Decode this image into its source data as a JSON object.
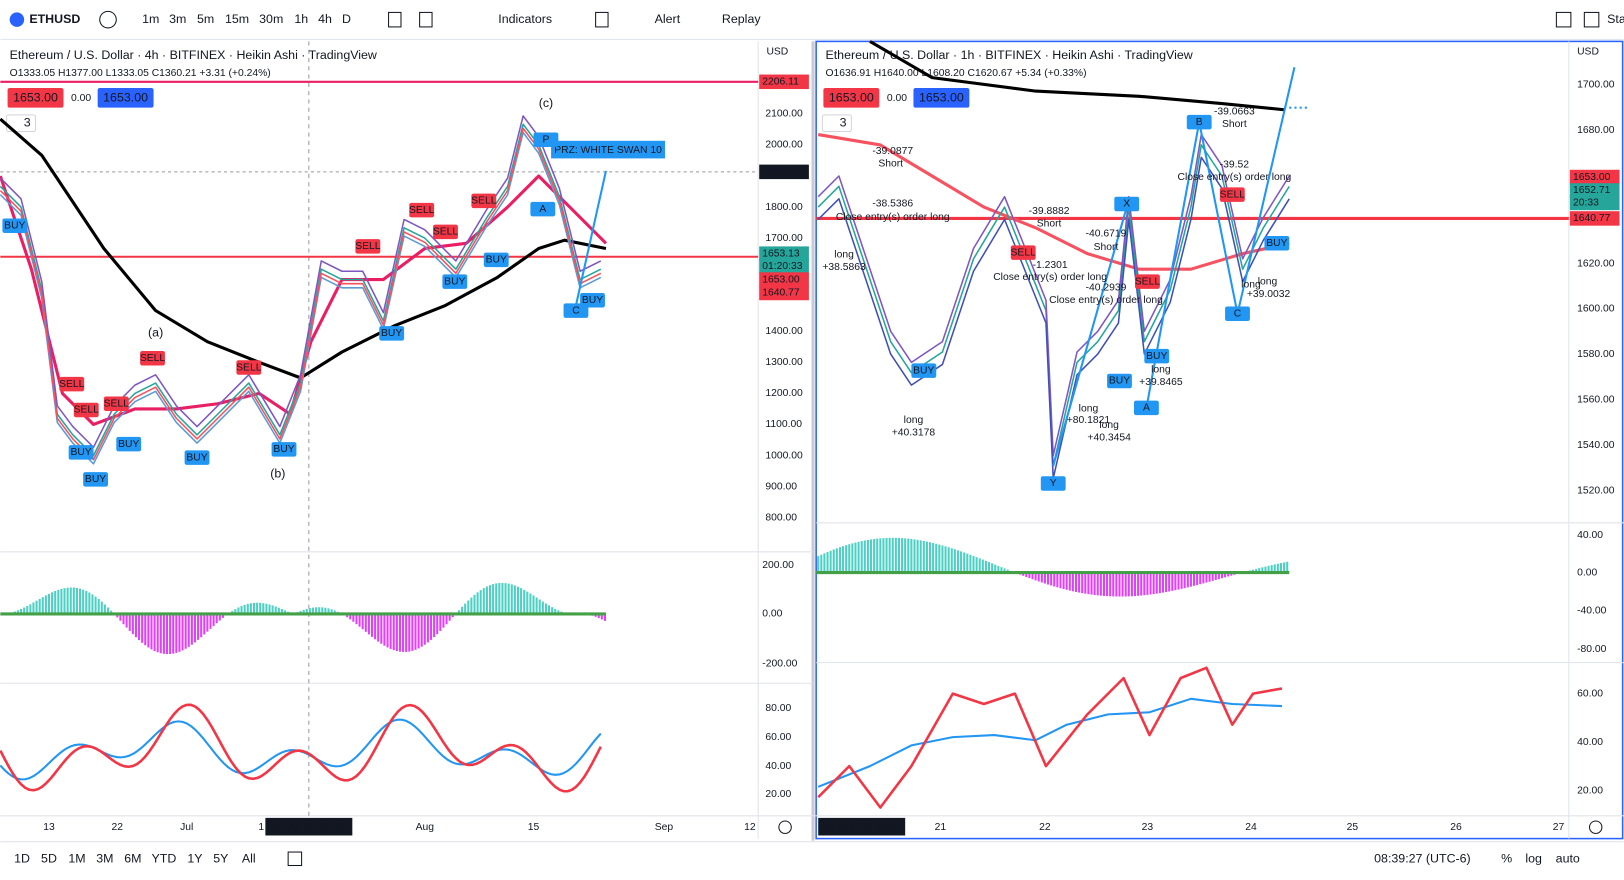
{
  "toolbar": {
    "symbol": "ETHUSD",
    "intervals": [
      "1m",
      "3m",
      "5m",
      "15m",
      "30m",
      "1h",
      "4h",
      "D"
    ],
    "indicators": "Indicators",
    "alert": "Alert",
    "replay": "Replay",
    "cut_off": "Sta"
  },
  "left_chart": {
    "title": "Ethereum / U.S. Dollar · 4h · BITFINEX · Heikin Ashi · TradingView",
    "ohlc": "O1333.05 H1377.00 L1333.05 C1360.21 +3.31 (+0.24%)",
    "price_boxes": [
      "1653.00",
      "0.00",
      "1653.00"
    ],
    "indicator_count": "3",
    "currency": "USD",
    "price_labels": [
      "2100.00",
      "2000.00",
      "1800.00",
      "1700.00",
      "1400.00",
      "1300.00",
      "1200.00",
      "1100.00",
      "1000.00",
      "900.00",
      "800.00"
    ],
    "price_tags": [
      "2206.11",
      "1915.99",
      "1653.13",
      "01:20:33",
      "1653.00",
      "1640.77"
    ],
    "osc_labels": [
      "200.00",
      "0.00",
      "-200.00"
    ],
    "rsi_labels": [
      "80.00",
      "60.00",
      "40.00",
      "20.00"
    ],
    "time_labels": [
      "13",
      "22",
      "Jul",
      "1",
      "Aug",
      "15",
      "Sep",
      "12"
    ],
    "crosshair_time": "16 Jul '22  22:00",
    "annotations": [
      "(a)",
      "(b)",
      "(c)",
      "PRZ: WHITE SWAN 10",
      "P",
      "A",
      "C",
      "SELL",
      "SELL",
      "SELL",
      "SELL",
      "SELL",
      "SELL",
      "SELL",
      "SELL",
      "SELL",
      "BUY",
      "BUY",
      "BUY",
      "BUY",
      "BUY",
      "BUY",
      "BUY",
      "BUY",
      "BUY",
      "BUY"
    ]
  },
  "right_chart": {
    "title": "Ethereum / U.S. Dollar · 1h · BITFINEX · Heikin Ashi · TradingView",
    "ohlc": "O1636.91 H1640.00 L1608.20 C1620.67 +5.34 (+0.33%)",
    "price_boxes": [
      "1653.00",
      "0.00",
      "1653.00"
    ],
    "indicator_count": "3",
    "currency": "USD",
    "price_labels": [
      "1700.00",
      "1680.00",
      "1620.00",
      "1600.00",
      "1580.00",
      "1560.00",
      "1540.00",
      "1520.00"
    ],
    "price_tags": [
      "1653.00",
      "1652.71",
      "20:33",
      "1640.77"
    ],
    "osc_labels": [
      "40.00",
      "0.00",
      "-40.00",
      "-80.00"
    ],
    "rsi_labels": [
      "60.00",
      "40.00",
      "20.00"
    ],
    "time_labels": [
      "21",
      "22",
      "23",
      "24",
      "25",
      "26",
      "27"
    ],
    "crosshair_time": "19 Aug '22  18:00",
    "annotations": [
      "-39.0877",
      "Short",
      "-38.5386",
      "Close entry(s) order long",
      "long",
      "+38.5863",
      "BUY",
      "long",
      "+40.3178",
      "-39.8882",
      "Short",
      "SELL",
      "-1.2301",
      "Close entry(s) order long",
      "-40.6719",
      "Short",
      "-40.2939",
      "Close entry(s) order long",
      "SELL",
      "BUY",
      "long",
      "+39.8465",
      "BUY",
      "long",
      "+80.1821",
      "long",
      "+40.3454",
      "-39.0663",
      "Short",
      "-39.52",
      "Close entry(s) order long",
      "SELL",
      "long",
      "long",
      "+39.0032",
      "BUY",
      "B",
      "X",
      "Y",
      "A",
      "C"
    ]
  },
  "bottom_bar": {
    "ranges": [
      "1D",
      "5D",
      "1M",
      "3M",
      "6M",
      "YTD",
      "1Y",
      "5Y",
      "All"
    ],
    "clock": "08:39:27 (UTC-6)",
    "percent": "%",
    "log": "log",
    "auto": "auto"
  }
}
